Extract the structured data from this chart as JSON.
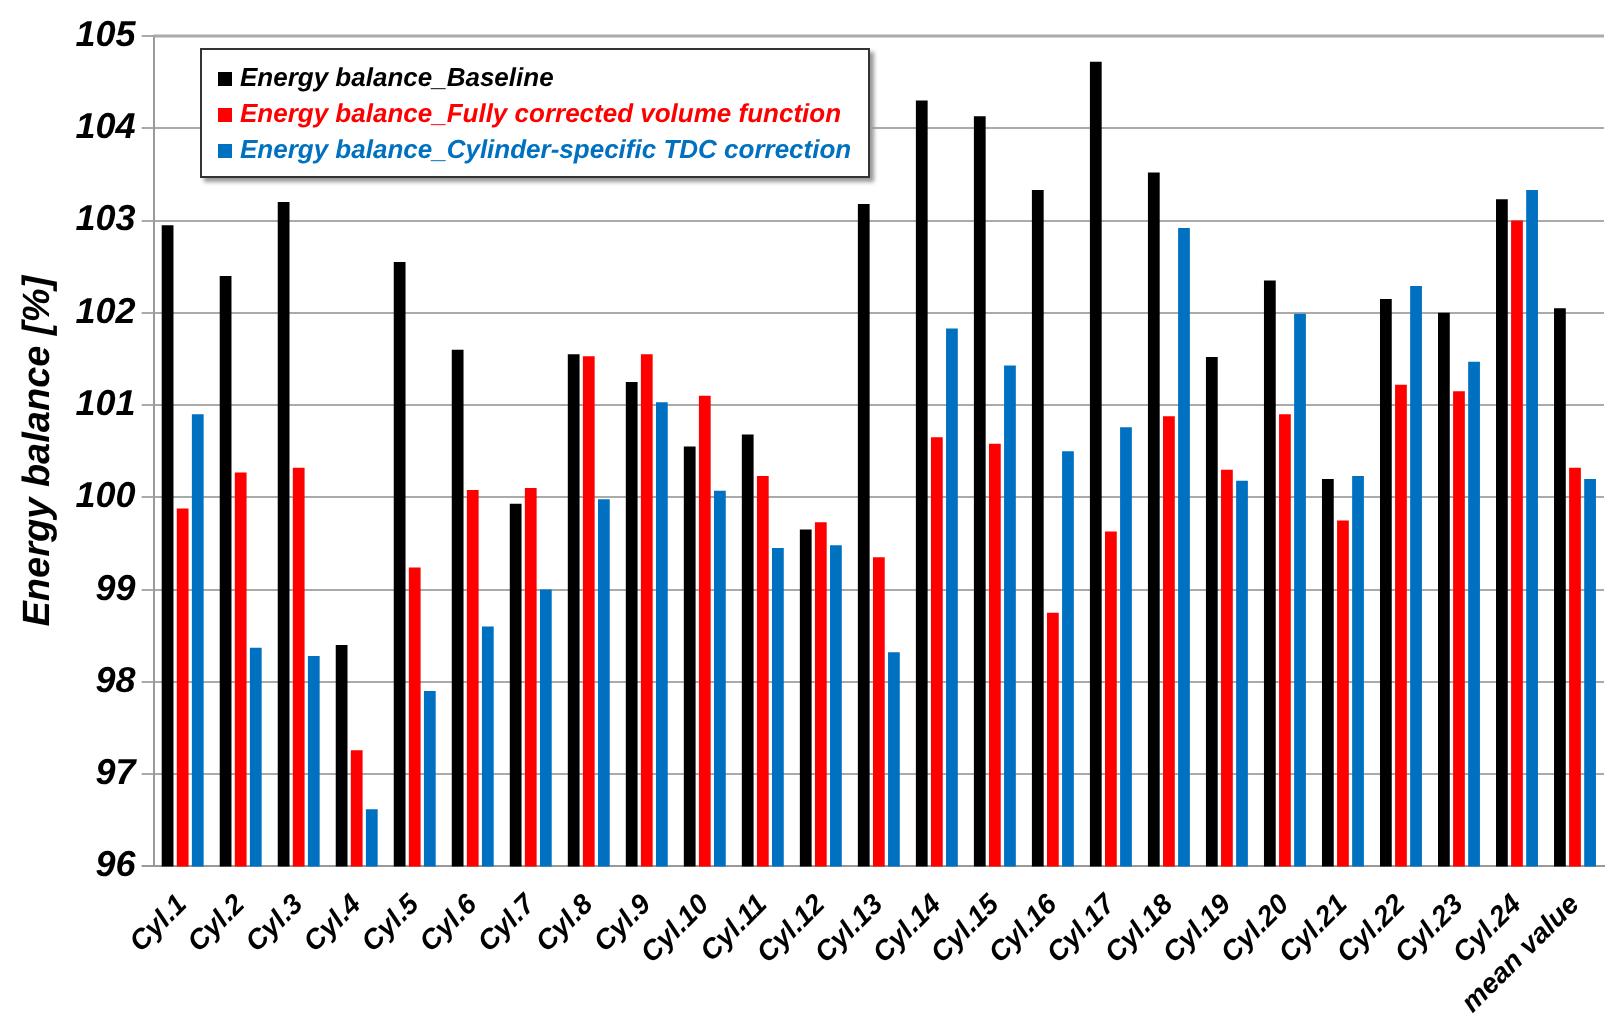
{
  "chart_data": {
    "type": "bar",
    "ylabel": "Energy balance [%]",
    "categories": [
      "Cyl.1",
      "Cyl.2",
      "Cyl.3",
      "Cyl.4",
      "Cyl.5",
      "Cyl.6",
      "Cyl.7",
      "Cyl.8",
      "Cyl.9",
      "Cyl.10",
      "Cyl.11",
      "Cyl.12",
      "Cyl.13",
      "Cyl.14",
      "Cyl.15",
      "Cyl.16",
      "Cyl.17",
      "Cyl.18",
      "Cyl.19",
      "Cyl.20",
      "Cyl.21",
      "Cyl.22",
      "Cyl.23",
      "Cyl.24",
      "mean value"
    ],
    "series": [
      {
        "name": "Energy balance_Baseline",
        "color": "#000000",
        "values": [
          102.95,
          102.4,
          103.2,
          98.4,
          102.55,
          101.6,
          99.93,
          101.55,
          101.25,
          100.55,
          100.68,
          99.65,
          103.18,
          104.3,
          104.13,
          103.33,
          104.72,
          103.52,
          101.52,
          102.35,
          100.2,
          102.15,
          102.0,
          103.23,
          102.05
        ]
      },
      {
        "name": "Energy balance_Fully corrected volume function",
        "color": "#ff0000",
        "values": [
          99.88,
          100.27,
          100.32,
          97.26,
          99.24,
          100.08,
          100.1,
          101.53,
          101.55,
          101.1,
          100.23,
          99.73,
          99.35,
          100.65,
          100.58,
          98.75,
          99.63,
          100.88,
          100.3,
          100.9,
          99.75,
          101.22,
          101.15,
          103.0,
          100.32
        ]
      },
      {
        "name": "Energy balance_Cylinder-specific TDC correction",
        "color": "#0070c0",
        "values": [
          100.9,
          98.37,
          98.28,
          96.62,
          97.9,
          98.6,
          99.0,
          99.98,
          101.03,
          100.07,
          99.45,
          99.48,
          98.32,
          101.83,
          101.43,
          100.5,
          100.76,
          102.92,
          100.18,
          101.99,
          100.23,
          102.29,
          101.47,
          103.33,
          100.2
        ]
      }
    ],
    "ylim": [
      96,
      105
    ],
    "yticks": [
      96,
      97,
      98,
      99,
      100,
      101,
      102,
      103,
      104,
      105
    ],
    "grid": "y",
    "legend": "top left"
  }
}
